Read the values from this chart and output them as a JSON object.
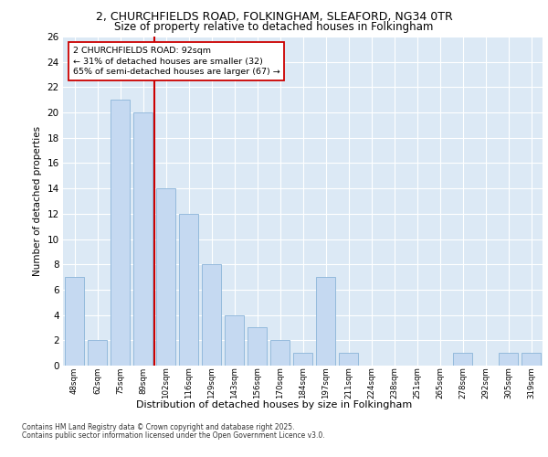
{
  "title1": "2, CHURCHFIELDS ROAD, FOLKINGHAM, SLEAFORD, NG34 0TR",
  "title2": "Size of property relative to detached houses in Folkingham",
  "xlabel": "Distribution of detached houses by size in Folkingham",
  "ylabel": "Number of detached properties",
  "categories": [
    "48sqm",
    "62sqm",
    "75sqm",
    "89sqm",
    "102sqm",
    "116sqm",
    "129sqm",
    "143sqm",
    "156sqm",
    "170sqm",
    "184sqm",
    "197sqm",
    "211sqm",
    "224sqm",
    "238sqm",
    "251sqm",
    "265sqm",
    "278sqm",
    "292sqm",
    "305sqm",
    "319sqm"
  ],
  "values": [
    7,
    2,
    21,
    20,
    14,
    12,
    8,
    4,
    3,
    2,
    1,
    7,
    1,
    0,
    0,
    0,
    0,
    1,
    0,
    1,
    1
  ],
  "bar_color": "#c5d9f1",
  "bar_edge_color": "#8ab4d8",
  "vline_x": 3.5,
  "vline_color": "#cc0000",
  "annotation_title": "2 CHURCHFIELDS ROAD: 92sqm",
  "annotation_line1": "← 31% of detached houses are smaller (32)",
  "annotation_line2": "65% of semi-detached houses are larger (67) →",
  "annotation_box_color": "#ffffff",
  "annotation_box_edge": "#cc0000",
  "ylim": [
    0,
    26
  ],
  "yticks": [
    0,
    2,
    4,
    6,
    8,
    10,
    12,
    14,
    16,
    18,
    20,
    22,
    24,
    26
  ],
  "plot_bg_color": "#dce9f5",
  "footer1": "Contains HM Land Registry data © Crown copyright and database right 2025.",
  "footer2": "Contains public sector information licensed under the Open Government Licence v3.0."
}
